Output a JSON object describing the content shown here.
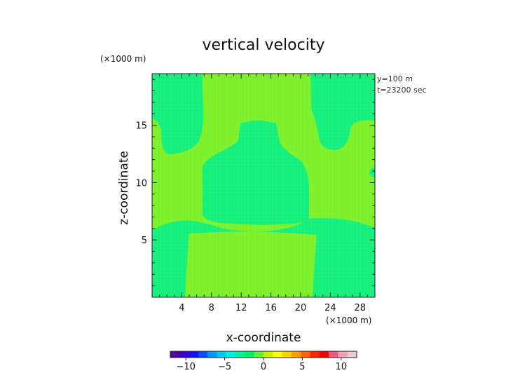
{
  "chart_data": {
    "type": "heatmap",
    "title": "vertical velocity",
    "xlabel": "x-coordinate",
    "ylabel": "z-coordinate",
    "x_unit": "(×1000 m)",
    "y_unit": "(×1000 m)",
    "info_lines": [
      "y=100  m",
      "t=23200 sec"
    ],
    "xlim": [
      0,
      30
    ],
    "ylim": [
      0,
      19.5
    ],
    "x_ticks": [
      4,
      8,
      12,
      16,
      20,
      24,
      28
    ],
    "y_ticks": [
      5,
      10,
      15
    ],
    "colorbar": {
      "range": [
        -12,
        12
      ],
      "ticks": [
        -10,
        -5,
        0,
        5,
        10
      ],
      "tick_labels": [
        "−10",
        "−5",
        "0",
        "5",
        "10"
      ],
      "colors": [
        "#5a00a0",
        "#3c00c8",
        "#1414f0",
        "#0050ff",
        "#0096ff",
        "#00c8ff",
        "#00f0e6",
        "#00f096",
        "#00f064",
        "#64f032",
        "#c8f000",
        "#ffff00",
        "#ffd200",
        "#ffa000",
        "#ff6400",
        "#ff2800",
        "#f00000",
        "#f05a78",
        "#f0a0b4",
        "#f0c8d2"
      ]
    },
    "field_colors": {
      "background": "#7cf028",
      "downdraft": "#14f07c"
    },
    "regions_desc": "weak vertical velocity everywhere; values between about -1 and +1"
  }
}
